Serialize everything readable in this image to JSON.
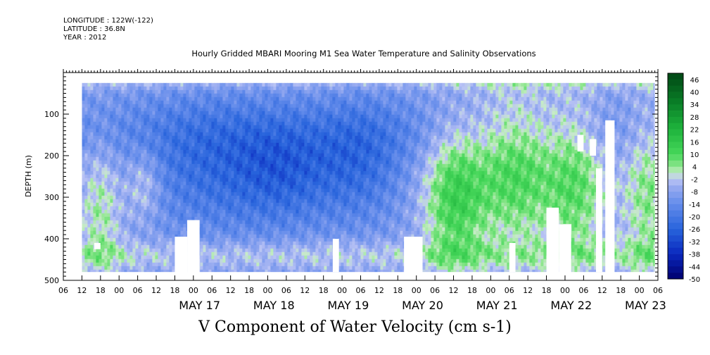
{
  "header": {
    "longitude": "LONGITUDE : 122W(-122)",
    "latitude": "LATITUDE : 36.8N",
    "year": "YEAR : 2012",
    "title": "Hourly Gridded MBARI Mooring M1 Sea Water Temperature and Salinity Observations"
  },
  "chart_data": {
    "type": "heatmap",
    "title": "Hourly Gridded MBARI Mooring M1 Sea Water Temperature and Salinity Observations",
    "subtitle": "V Component of Water Velocity (cm s-1)",
    "ylabel": "DEPTH (m)",
    "y_ticks": [
      "100",
      "200",
      "300",
      "400",
      "500"
    ],
    "y_tick_values": [
      100,
      200,
      300,
      400,
      500
    ],
    "ylim": [
      500,
      0
    ],
    "x_hour_labels": [
      "00",
      "06",
      "12",
      "18"
    ],
    "days": [
      "MAY 17",
      "MAY 18",
      "MAY 19",
      "MAY 20",
      "MAY 21",
      "MAY 22",
      "MAY 23"
    ],
    "x_range_hours": [
      -42,
      150
    ],
    "colorbar": {
      "labels": [
        "46",
        "40",
        "34",
        "28",
        "22",
        "16",
        "10",
        "4",
        "-2",
        "-8",
        "-14",
        "-20",
        "-26",
        "-32",
        "-38",
        "-44",
        "-50"
      ],
      "min": -50,
      "max": 49,
      "step": 3
    },
    "field_notes": "V velocity; mostly -6 to -20 cm/s (blue), strongest near -26 around 200-300 m on May 18-20; positive 4-14 cm/s (green) bands late May 20 to May 22 and patches May 17 and May 23."
  }
}
